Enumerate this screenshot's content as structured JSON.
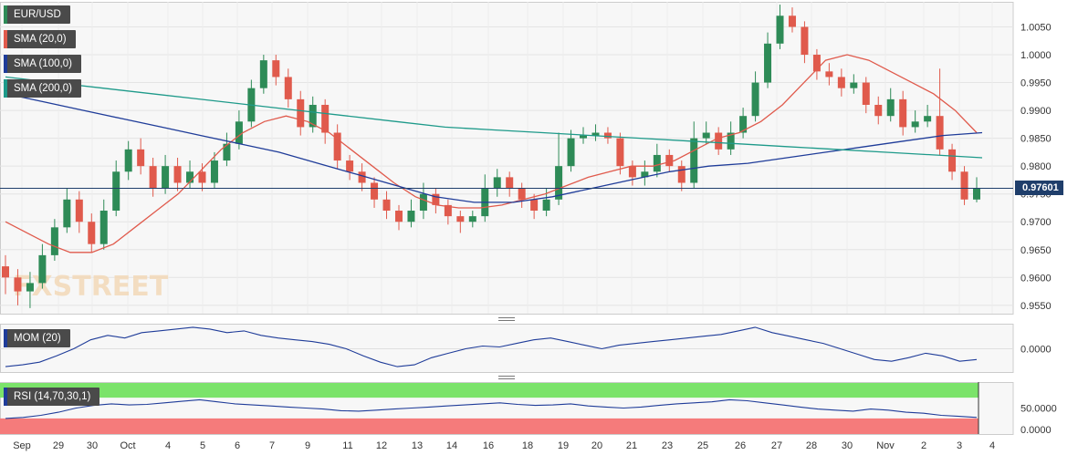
{
  "chart_data": {
    "type": "candlestick",
    "legend": [
      {
        "label": "EUR/USD",
        "color": "#2e8b57"
      },
      {
        "label": "SMA (20,0)",
        "color": "#e05a4c"
      },
      {
        "label": "SMA (100,0)",
        "color": "#1f3c99"
      },
      {
        "label": "SMA (200,0)",
        "color": "#1e9a8a"
      }
    ],
    "price_axis": {
      "ticks": [
        "1.0050",
        "1.0000",
        "0.9950",
        "0.9900",
        "0.9850",
        "0.9800",
        "0.9750",
        "0.9700",
        "0.9650",
        "0.9600",
        "0.9550"
      ],
      "ylim": [
        0.9535,
        1.0095
      ]
    },
    "last_price": "0.97601",
    "x_ticks": [
      "Sep",
      "29",
      "30",
      "Oct",
      "4",
      "5",
      "6",
      "7",
      "9",
      "11",
      "12",
      "13",
      "14",
      "16",
      "18",
      "19",
      "20",
      "21",
      "23",
      "25",
      "26",
      "27",
      "28",
      "30",
      "Nov",
      "2",
      "3",
      "4"
    ],
    "candles": [
      [
        0.962,
        0.96,
        0.964,
        0.957
      ],
      [
        0.96,
        0.9575,
        0.9615,
        0.955
      ],
      [
        0.9575,
        0.959,
        0.961,
        0.9545
      ],
      [
        0.959,
        0.964,
        0.966,
        0.958
      ],
      [
        0.964,
        0.969,
        0.9705,
        0.963
      ],
      [
        0.969,
        0.974,
        0.976,
        0.968
      ],
      [
        0.974,
        0.97,
        0.9755,
        0.968
      ],
      [
        0.97,
        0.966,
        0.9715,
        0.9645
      ],
      [
        0.966,
        0.972,
        0.974,
        0.965
      ],
      [
        0.972,
        0.979,
        0.981,
        0.971
      ],
      [
        0.979,
        0.983,
        0.9845,
        0.9775
      ],
      [
        0.983,
        0.98,
        0.985,
        0.9785
      ],
      [
        0.98,
        0.976,
        0.9815,
        0.9745
      ],
      [
        0.976,
        0.98,
        0.982,
        0.975
      ],
      [
        0.98,
        0.977,
        0.9815,
        0.9755
      ],
      [
        0.977,
        0.979,
        0.981,
        0.976
      ],
      [
        0.979,
        0.977,
        0.9805,
        0.9755
      ],
      [
        0.977,
        0.981,
        0.9825,
        0.976
      ],
      [
        0.981,
        0.984,
        0.986,
        0.98
      ],
      [
        0.984,
        0.988,
        0.99,
        0.983
      ],
      [
        0.988,
        0.994,
        0.9955,
        0.987
      ],
      [
        0.994,
        0.999,
        1.0,
        0.993
      ],
      [
        0.999,
        0.996,
        1.0,
        0.9945
      ],
      [
        0.996,
        0.992,
        0.9975,
        0.9905
      ],
      [
        0.992,
        0.987,
        0.9935,
        0.9855
      ],
      [
        0.987,
        0.991,
        0.9925,
        0.986
      ],
      [
        0.991,
        0.986,
        0.992,
        0.984
      ],
      [
        0.986,
        0.981,
        0.9875,
        0.9795
      ],
      [
        0.981,
        0.979,
        0.982,
        0.9775
      ],
      [
        0.979,
        0.977,
        0.9805,
        0.9755
      ],
      [
        0.977,
        0.974,
        0.978,
        0.9725
      ],
      [
        0.974,
        0.972,
        0.9755,
        0.9705
      ],
      [
        0.972,
        0.97,
        0.973,
        0.9685
      ],
      [
        0.97,
        0.972,
        0.974,
        0.969
      ],
      [
        0.972,
        0.975,
        0.977,
        0.9705
      ],
      [
        0.975,
        0.973,
        0.976,
        0.9715
      ],
      [
        0.973,
        0.971,
        0.974,
        0.9695
      ],
      [
        0.971,
        0.97,
        0.972,
        0.968
      ],
      [
        0.97,
        0.971,
        0.972,
        0.969
      ],
      [
        0.971,
        0.976,
        0.9785,
        0.97
      ],
      [
        0.976,
        0.978,
        0.9795,
        0.9745
      ],
      [
        0.978,
        0.976,
        0.979,
        0.9745
      ],
      [
        0.976,
        0.974,
        0.977,
        0.9725
      ],
      [
        0.974,
        0.972,
        0.975,
        0.9705
      ],
      [
        0.972,
        0.974,
        0.976,
        0.971
      ],
      [
        0.974,
        0.98,
        0.986,
        0.973
      ],
      [
        0.98,
        0.985,
        0.9865,
        0.979
      ],
      [
        0.985,
        0.9855,
        0.987,
        0.984
      ],
      [
        0.9855,
        0.986,
        0.9875,
        0.9845
      ],
      [
        0.986,
        0.985,
        0.987,
        0.984
      ],
      [
        0.985,
        0.98,
        0.986,
        0.9785
      ],
      [
        0.98,
        0.978,
        0.981,
        0.9765
      ],
      [
        0.978,
        0.979,
        0.981,
        0.9765
      ],
      [
        0.979,
        0.982,
        0.984,
        0.978
      ],
      [
        0.982,
        0.98,
        0.983,
        0.979
      ],
      [
        0.98,
        0.977,
        0.981,
        0.9755
      ],
      [
        0.977,
        0.985,
        0.988,
        0.976
      ],
      [
        0.985,
        0.986,
        0.988,
        0.984
      ],
      [
        0.986,
        0.983,
        0.987,
        0.982
      ],
      [
        0.983,
        0.986,
        0.988,
        0.982
      ],
      [
        0.986,
        0.989,
        0.9905,
        0.985
      ],
      [
        0.989,
        0.995,
        0.997,
        0.988
      ],
      [
        0.995,
        1.002,
        1.004,
        0.994
      ],
      [
        1.002,
        1.007,
        1.009,
        1.001
      ],
      [
        1.007,
        1.005,
        1.0085,
        1.004
      ],
      [
        1.005,
        1.0,
        1.006,
        0.9985
      ],
      [
        1.0,
        0.997,
        1.001,
        0.9955
      ],
      [
        0.997,
        0.996,
        0.9985,
        0.9945
      ],
      [
        0.996,
        0.994,
        0.9975,
        0.9925
      ],
      [
        0.994,
        0.995,
        0.9965,
        0.993
      ],
      [
        0.995,
        0.991,
        0.996,
        0.9895
      ],
      [
        0.991,
        0.989,
        0.9925,
        0.9875
      ],
      [
        0.989,
        0.992,
        0.994,
        0.988
      ],
      [
        0.992,
        0.987,
        0.9935,
        0.9855
      ],
      [
        0.987,
        0.988,
        0.99,
        0.986
      ],
      [
        0.988,
        0.989,
        0.991,
        0.987
      ],
      [
        0.989,
        0.983,
        0.9975,
        0.982
      ],
      [
        0.983,
        0.979,
        0.984,
        0.9775
      ],
      [
        0.979,
        0.974,
        0.98,
        0.973
      ],
      [
        0.974,
        0.976,
        0.978,
        0.9735
      ]
    ],
    "sma20": [
      0.97,
      0.968,
      0.966,
      0.9645,
      0.9645,
      0.966,
      0.969,
      0.972,
      0.975,
      0.979,
      0.983,
      0.986,
      0.988,
      0.989,
      0.988,
      0.986,
      0.983,
      0.98,
      0.977,
      0.9745,
      0.973,
      0.9725,
      0.9725,
      0.973,
      0.974,
      0.975,
      0.9765,
      0.978,
      0.979,
      0.98,
      0.98,
      0.981,
      0.983,
      0.985,
      0.986,
      0.988,
      0.991,
      0.995,
      0.999,
      1.0,
      0.999,
      0.997,
      0.995,
      0.993,
      0.99,
      0.986
    ],
    "sma20_x": [
      0,
      2,
      4,
      6,
      8,
      10,
      12,
      14,
      16,
      18,
      20,
      22,
      24,
      26,
      28,
      30,
      32,
      34,
      36,
      38,
      40,
      42,
      44,
      46,
      48,
      50,
      52,
      54,
      56,
      58,
      60,
      62,
      64,
      66,
      68,
      70,
      72,
      74,
      76,
      78,
      80,
      82,
      84,
      86,
      88,
      90
    ],
    "sma100": [
      0.993,
      0.9915,
      0.99,
      0.9885,
      0.987,
      0.9855,
      0.984,
      0.9825,
      0.9805,
      0.9785,
      0.9765,
      0.9745,
      0.9735,
      0.9735,
      0.9745,
      0.976,
      0.9775,
      0.979,
      0.98,
      0.9805,
      0.9815,
      0.9825,
      0.9835,
      0.9845,
      0.9855,
      0.986
    ],
    "sma200": [
      0.996,
      0.995,
      0.994,
      0.993,
      0.992,
      0.991,
      0.99,
      0.989,
      0.988,
      0.987,
      0.9865,
      0.986,
      0.9855,
      0.985,
      0.9845,
      0.984,
      0.9835,
      0.983,
      0.9825,
      0.982,
      0.9815
    ],
    "momentum": {
      "label": "MOM (20)",
      "ticks": [
        "0.0000"
      ],
      "values": [
        -0.02,
        -0.018,
        -0.015,
        -0.008,
        0.0,
        0.01,
        0.015,
        0.012,
        0.018,
        0.02,
        0.022,
        0.024,
        0.022,
        0.018,
        0.02,
        0.015,
        0.012,
        0.01,
        0.008,
        0.005,
        0.0,
        -0.008,
        -0.015,
        -0.02,
        -0.018,
        -0.01,
        -0.005,
        0.0,
        0.003,
        0.002,
        0.006,
        0.01,
        0.012,
        0.008,
        0.004,
        0.0,
        0.004,
        0.006,
        0.008,
        0.01,
        0.012,
        0.014,
        0.016,
        0.02,
        0.024,
        0.018,
        0.014,
        0.01,
        0.006,
        0.0,
        -0.006,
        -0.012,
        -0.014,
        -0.01,
        -0.005,
        -0.008,
        -0.014,
        -0.012
      ],
      "ylim": [
        -0.026,
        0.028
      ]
    },
    "rsi": {
      "label": "RSI (14,70,30,1)",
      "ticks": [
        "50.0000",
        "0.0000"
      ],
      "values": [
        30,
        32,
        36,
        42,
        50,
        55,
        58,
        56,
        57,
        60,
        63,
        66,
        62,
        58,
        56,
        54,
        52,
        50,
        48,
        45,
        44,
        46,
        48,
        50,
        52,
        54,
        56,
        58,
        60,
        57,
        55,
        56,
        58,
        54,
        52,
        50,
        52,
        55,
        58,
        60,
        62,
        66,
        64,
        60,
        56,
        52,
        48,
        46,
        44,
        48,
        46,
        42,
        40,
        36,
        34,
        32
      ],
      "upper": 70,
      "lower": 30,
      "ylim": [
        0,
        100
      ]
    }
  }
}
